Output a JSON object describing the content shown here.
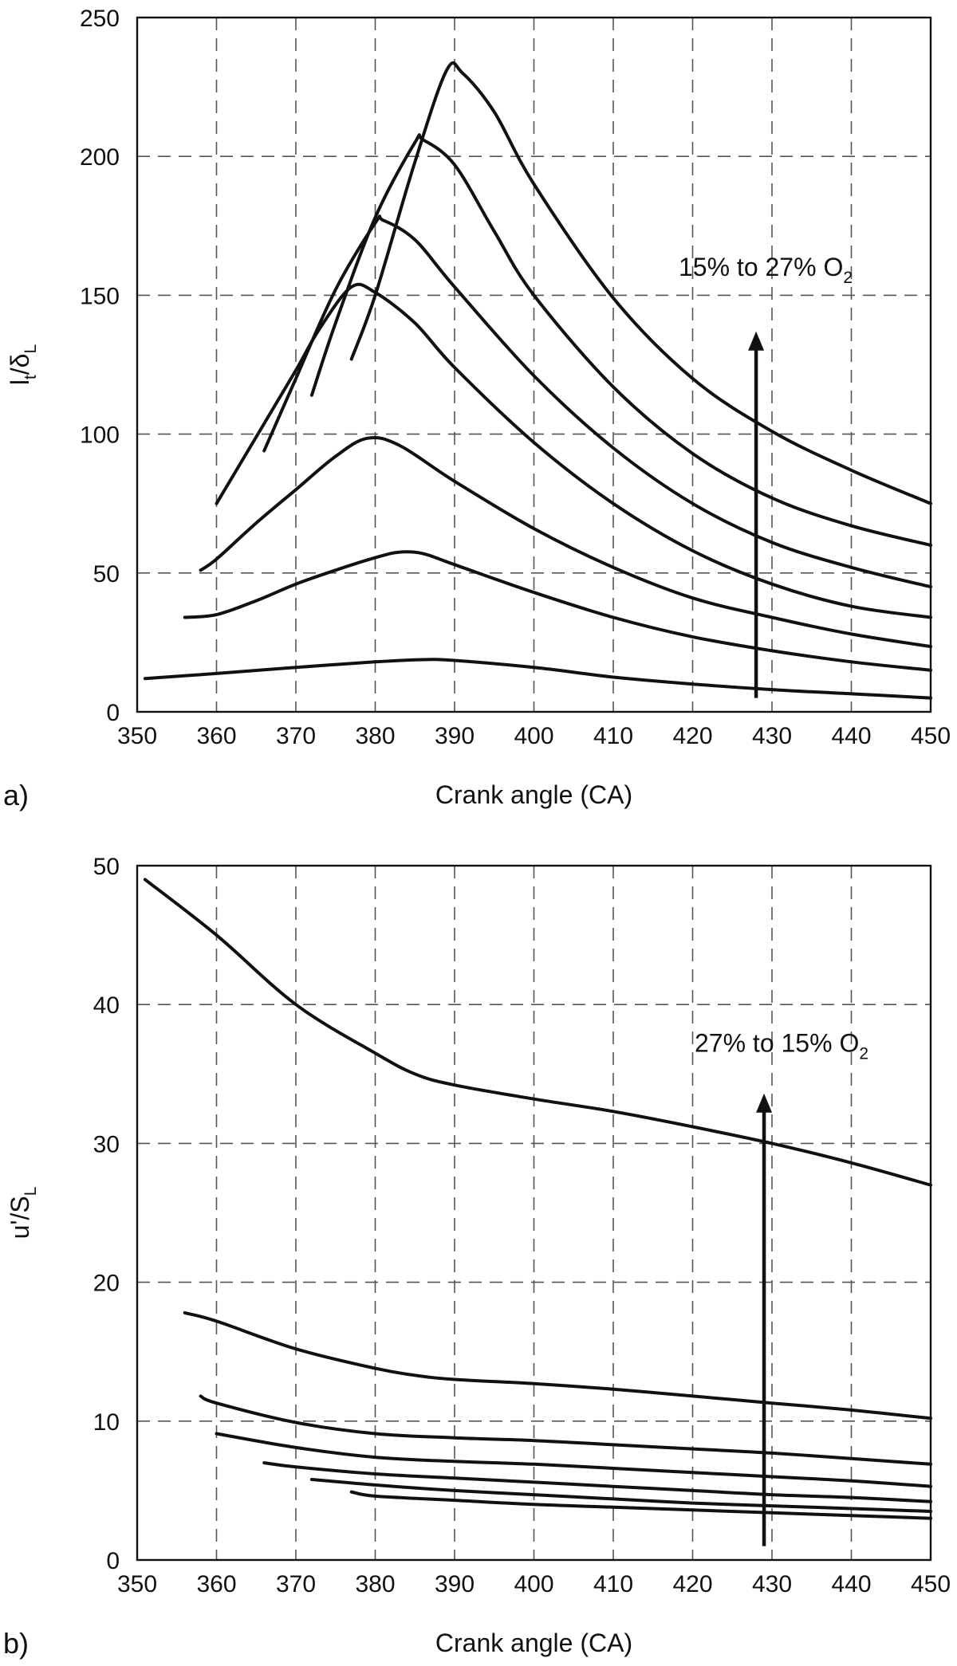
{
  "chart_data": [
    {
      "type": "line",
      "panel_label": "a)",
      "xlabel": "Crank angle (CA)",
      "ylabel": {
        "main": "l",
        "sub1": "t",
        "mid": "/δ",
        "sub2": "L"
      },
      "xlim": [
        350,
        450
      ],
      "ylim": [
        0,
        250
      ],
      "xticks": [
        350,
        360,
        370,
        380,
        390,
        400,
        410,
        420,
        430,
        440,
        450
      ],
      "yticks": [
        0,
        50,
        100,
        150,
        200,
        250
      ],
      "grid": true,
      "annotation": {
        "text": "15% to 27% O",
        "sub": "2",
        "arrow_x": 428,
        "arrow_from": 5,
        "arrow_to": 137
      },
      "series": [
        {
          "x": [
            351,
            360,
            370,
            380,
            386,
            390,
            400,
            410,
            420,
            430,
            440,
            450
          ],
          "y": [
            12,
            13.8,
            16,
            18,
            18.8,
            18.5,
            16,
            12.5,
            10,
            8,
            6.5,
            5
          ]
        },
        {
          "x": [
            356,
            360,
            365,
            370,
            375,
            380,
            383,
            386,
            390,
            400,
            410,
            420,
            430,
            440,
            450
          ],
          "y": [
            34,
            35,
            40,
            46,
            51,
            55.5,
            57.5,
            57,
            53,
            43,
            34,
            27,
            22,
            18,
            15
          ]
        },
        {
          "x": [
            358,
            360,
            365,
            370,
            375,
            379,
            383,
            390,
            400,
            410,
            420,
            430,
            440,
            450
          ],
          "y": [
            51,
            55,
            68,
            80,
            92,
            98.5,
            96,
            83,
            66,
            52,
            41,
            34,
            28,
            23.5
          ]
        },
        {
          "x": [
            360,
            365,
            370,
            373,
            377,
            380,
            385,
            390,
            400,
            410,
            420,
            430,
            440,
            450
          ],
          "y": [
            75,
            99,
            123,
            138,
            153,
            151,
            140,
            124,
            97,
            75,
            58,
            46,
            38,
            34
          ]
        },
        {
          "x": [
            366,
            370,
            375,
            380,
            381,
            385,
            390,
            400,
            410,
            420,
            430,
            440,
            450
          ],
          "y": [
            94,
            120,
            152,
            176,
            177,
            170,
            153,
            121,
            95,
            75,
            61,
            52,
            45
          ]
        },
        {
          "x": [
            372,
            375,
            380,
            385,
            386,
            390,
            395,
            400,
            410,
            420,
            430,
            440,
            450
          ],
          "y": [
            114,
            140,
            178,
            205,
            206,
            197,
            173,
            150,
            117,
            93,
            77,
            67,
            60
          ]
        },
        {
          "x": [
            377,
            380,
            385,
            389,
            391,
            395,
            400,
            410,
            420,
            430,
            440,
            450
          ],
          "y": [
            127,
            150,
            198,
            231,
            230,
            216,
            190,
            149,
            120,
            101,
            87,
            75
          ]
        }
      ]
    },
    {
      "type": "line",
      "panel_label": "b)",
      "xlabel": "Crank angle (CA)",
      "ylabel": {
        "main": "u'/S",
        "sub": "L"
      },
      "xlim": [
        350,
        450
      ],
      "ylim": [
        0,
        50
      ],
      "xticks": [
        350,
        360,
        370,
        380,
        390,
        400,
        410,
        420,
        430,
        440,
        450
      ],
      "yticks": [
        0,
        10,
        20,
        30,
        40,
        50
      ],
      "grid": true,
      "annotation": {
        "text": "27% to 15% O",
        "sub": "2",
        "arrow_x": 429,
        "arrow_from": 1,
        "arrow_to": 33.6
      },
      "series": [
        {
          "x": [
            351,
            360,
            370,
            380,
            385,
            390,
            400,
            410,
            420,
            430,
            440,
            450
          ],
          "y": [
            49,
            45,
            40,
            36.5,
            35,
            34.2,
            33.2,
            32.3,
            31.2,
            30,
            28.6,
            27
          ]
        },
        {
          "x": [
            356,
            360,
            370,
            380,
            385,
            390,
            400,
            410,
            420,
            430,
            440,
            450
          ],
          "y": [
            17.8,
            17.2,
            15.2,
            13.8,
            13.3,
            13,
            12.7,
            12.3,
            11.8,
            11.3,
            10.8,
            10.2
          ]
        },
        {
          "x": [
            358,
            360,
            370,
            380,
            390,
            400,
            410,
            420,
            430,
            440,
            450
          ],
          "y": [
            11.8,
            11.3,
            9.9,
            9.1,
            8.8,
            8.6,
            8.3,
            8.0,
            7.7,
            7.3,
            6.9
          ]
        },
        {
          "x": [
            360,
            370,
            380,
            390,
            400,
            410,
            420,
            430,
            440,
            450
          ],
          "y": [
            9.1,
            8.1,
            7.4,
            7.1,
            6.9,
            6.6,
            6.3,
            6.0,
            5.7,
            5.3
          ]
        },
        {
          "x": [
            366,
            370,
            380,
            390,
            400,
            410,
            420,
            430,
            440,
            450
          ],
          "y": [
            7.0,
            6.7,
            6.2,
            5.9,
            5.6,
            5.3,
            5.0,
            4.7,
            4.5,
            4.2
          ]
        },
        {
          "x": [
            372,
            380,
            390,
            400,
            410,
            420,
            430,
            440,
            450
          ],
          "y": [
            5.8,
            5.4,
            5.0,
            4.7,
            4.4,
            4.1,
            3.9,
            3.7,
            3.5
          ]
        },
        {
          "x": [
            377,
            380,
            390,
            400,
            410,
            420,
            430,
            440,
            450
          ],
          "y": [
            4.9,
            4.6,
            4.3,
            4.0,
            3.8,
            3.6,
            3.4,
            3.2,
            3.0
          ]
        }
      ]
    }
  ]
}
